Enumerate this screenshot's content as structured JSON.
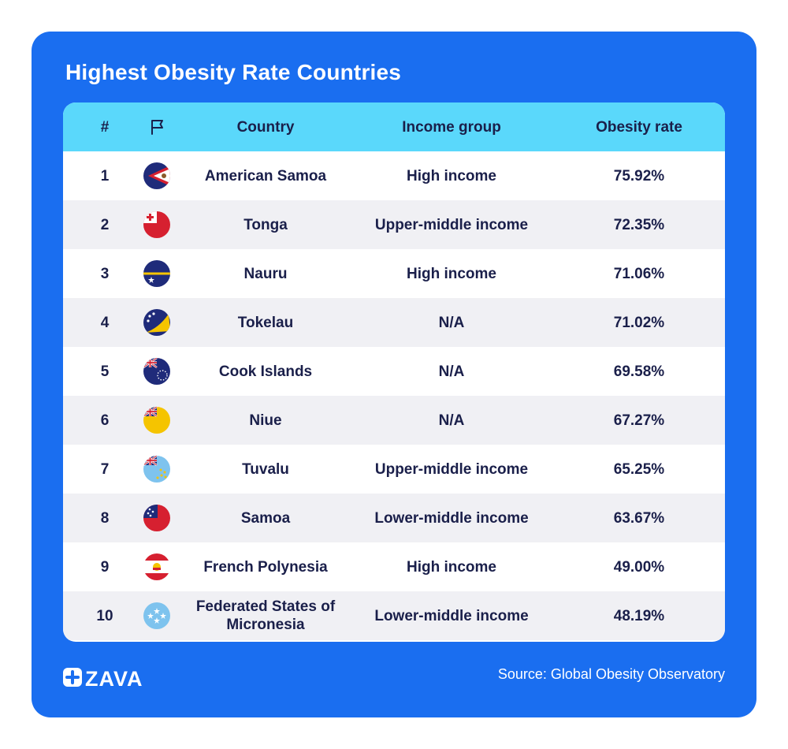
{
  "title": "Highest Obesity Rate Countries",
  "source": "Source: Global Obesity Observatory",
  "brand": "ZAVA",
  "colors": {
    "background": "#1a6ef0",
    "header": "#5ad8fb",
    "text": "#1a1f4a",
    "row_alt": "#f0f0f4"
  },
  "chart_data": {
    "type": "table",
    "columns": [
      "#",
      "flag-icon",
      "Country",
      "Income group",
      "Obesity rate"
    ],
    "rows": [
      {
        "rank": "1",
        "flag": "american-samoa-flag-icon",
        "country": "American Samoa",
        "income": "High income",
        "rate": "75.92%"
      },
      {
        "rank": "2",
        "flag": "tonga-flag-icon",
        "country": "Tonga",
        "income": "Upper-middle income",
        "rate": "72.35%"
      },
      {
        "rank": "3",
        "flag": "nauru-flag-icon",
        "country": "Nauru",
        "income": "High income",
        "rate": "71.06%"
      },
      {
        "rank": "4",
        "flag": "tokelau-flag-icon",
        "country": "Tokelau",
        "income": "N/A",
        "rate": "71.02%"
      },
      {
        "rank": "5",
        "flag": "cook-islands-flag-icon",
        "country": "Cook Islands",
        "income": "N/A",
        "rate": "69.58%"
      },
      {
        "rank": "6",
        "flag": "niue-flag-icon",
        "country": "Niue",
        "income": "N/A",
        "rate": "67.27%"
      },
      {
        "rank": "7",
        "flag": "tuvalu-flag-icon",
        "country": "Tuvalu",
        "income": "Upper-middle income",
        "rate": "65.25%"
      },
      {
        "rank": "8",
        "flag": "samoa-flag-icon",
        "country": "Samoa",
        "income": "Lower-middle income",
        "rate": "63.67%"
      },
      {
        "rank": "9",
        "flag": "french-polynesia-flag-icon",
        "country": "French Polynesia",
        "income": "High income",
        "rate": "49.00%"
      },
      {
        "rank": "10",
        "flag": "micronesia-flag-icon",
        "country": "Federated States of Micronesia",
        "income": "Lower-middle income",
        "rate": "48.19%"
      }
    ]
  }
}
